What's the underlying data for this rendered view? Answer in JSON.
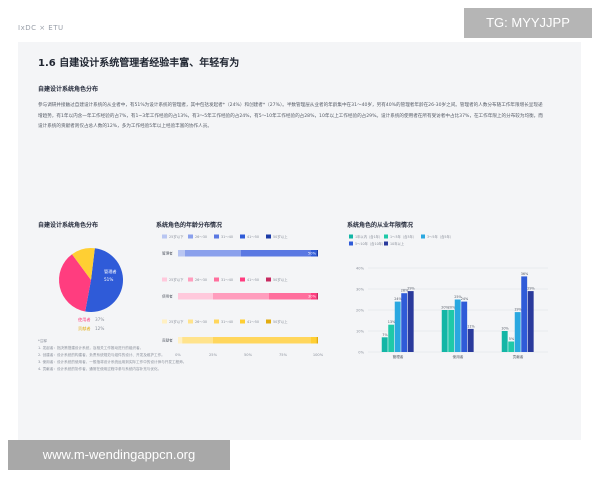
{
  "header": {
    "brand": "IxDC × ETU",
    "page_number": "11"
  },
  "title": "1.6 自建设计系统管理者经验丰富、年轻有为",
  "subtitle": "自建设计系统角色分布",
  "paragraph": "参与调研并接触过自建设计系统的从业者中，有51%为设计系统的管理者，其中包括发起者*（24%）和创建者*（27%）。半数管理层从业者的年龄集中在31～40岁，另有40%的管理者年龄在26-30岁之间。管理者的人数分布随工作年限增长呈现递增趋势，有1年以内含一年工作经验的占7%，有1~3年工作经验的占13%，有3～5年工作经验的占24%，有5～10年工作经验的占28%，10年以上工作经验的占29%。设计系统的使用者在所有受访者中占比37%，在工作年限上的分布较为均衡，而设计系统的贡献者则仅占总人数的12%，多为工作经验5年以上经验丰富的协作人员。",
  "pie_chart": {
    "title": "自建设计系统角色分布",
    "colors": [
      "#2f5bd8",
      "#ff3d7f",
      "#ffcf33"
    ],
    "chart_data": {
      "type": "pie",
      "title": "自建设计系统角色分布",
      "slices": [
        {
          "label": "管理者",
          "value": 51
        },
        {
          "label": "使用者",
          "value": 37
        },
        {
          "label": "贡献者",
          "value": 12
        }
      ]
    },
    "labels": {
      "manager": "管理者",
      "manager_pct": "51%",
      "user": "使用者",
      "user_pct": "37%",
      "contrib": "贡献者",
      "contrib_pct": "12%"
    }
  },
  "age_chart": {
    "title": "系统角色的年龄分布情况",
    "legend": [
      "25岁以下",
      "26～30",
      "31～40",
      "41～50",
      "50岁以上"
    ],
    "groups": [
      {
        "role": "管理者",
        "palette": [
          "#b9c6f2",
          "#8aa0ec",
          "#5a78e2",
          "#2f5bd8",
          "#1b3aa6"
        ],
        "segments": [
          5,
          40,
          50,
          4,
          1
        ],
        "end_label": "50%"
      },
      {
        "role": "使用者",
        "palette": [
          "#ffc9dc",
          "#ff9dbd",
          "#ff6f9d",
          "#ff3d7f",
          "#c72a60"
        ],
        "segments": [
          25,
          40,
          30,
          4,
          1
        ],
        "end_label": "30%"
      },
      {
        "role": "贡献者",
        "palette": [
          "#fff0c2",
          "#ffe38c",
          "#ffd65c",
          "#ffcf33",
          "#e2ac10"
        ],
        "segments": [
          3,
          22,
          70,
          4,
          1
        ],
        "end_label": ""
      }
    ],
    "axis_ticks": [
      "0%",
      "25%",
      "50%",
      "75%",
      "100%"
    ],
    "chart_data": {
      "type": "bar",
      "title": "系统角色的年龄分布情况",
      "categories": [
        "管理者",
        "使用者",
        "贡献者"
      ],
      "series": [
        {
          "name": "25岁以下",
          "values": [
            5,
            25,
            3
          ]
        },
        {
          "name": "26～30",
          "values": [
            40,
            40,
            22
          ]
        },
        {
          "name": "31～40",
          "values": [
            50,
            30,
            70
          ]
        },
        {
          "name": "41～50",
          "values": [
            4,
            4,
            4
          ]
        },
        {
          "name": "50岁以上",
          "values": [
            1,
            1,
            1
          ]
        }
      ]
    }
  },
  "years_chart": {
    "title": "系统角色的从业年限情况",
    "legend": [
      "1年以内（含1年）",
      "1～3年（含3年）",
      "3～5年（含5年）",
      "5～10年（含10年）",
      "10年以上"
    ],
    "colors": [
      "#13b6a6",
      "#1fc9a8",
      "#2aa8e0",
      "#2f5bd8",
      "#2a3a9c"
    ],
    "y_ticks": [
      "0%",
      "10%",
      "20%",
      "30%",
      "40%"
    ],
    "chart_data": {
      "type": "bar",
      "title": "系统角色的从业年限情况",
      "categories": [
        "管理者",
        "使用者",
        "贡献者"
      ],
      "series": [
        {
          "name": "1年以内（含1年）",
          "values": [
            7,
            20,
            10
          ]
        },
        {
          "name": "1～3年（含3年）",
          "values": [
            13,
            20,
            5
          ]
        },
        {
          "name": "3～5年（含5年）",
          "values": [
            24,
            25,
            19
          ]
        },
        {
          "name": "5～10年（含10年）",
          "values": [
            28,
            24,
            36
          ]
        },
        {
          "name": "10年以上",
          "values": [
            29,
            11,
            29
          ]
        }
      ],
      "ylim": [
        0,
        40
      ]
    }
  },
  "footnotes": [
    "*注释",
    "1. 发起者：指决策搭建设计系统，及相关工作推动进行的组织者。",
    "2. 创建者：设计系统的构建者，负责系统规范与组件的设计、开发及维护工作。",
    "3. 使用者：设计系统的使用者，一般指将设计系统运用到实际工作中的设计师与开发工程师。",
    "4. 贡献者：设计系统的协作者，通常在使用过程中参与系统内容补充与优化。"
  ],
  "watermarks": {
    "top": "TG: MYYJJPP",
    "bottom": "www.m-wendingappcn.org"
  }
}
